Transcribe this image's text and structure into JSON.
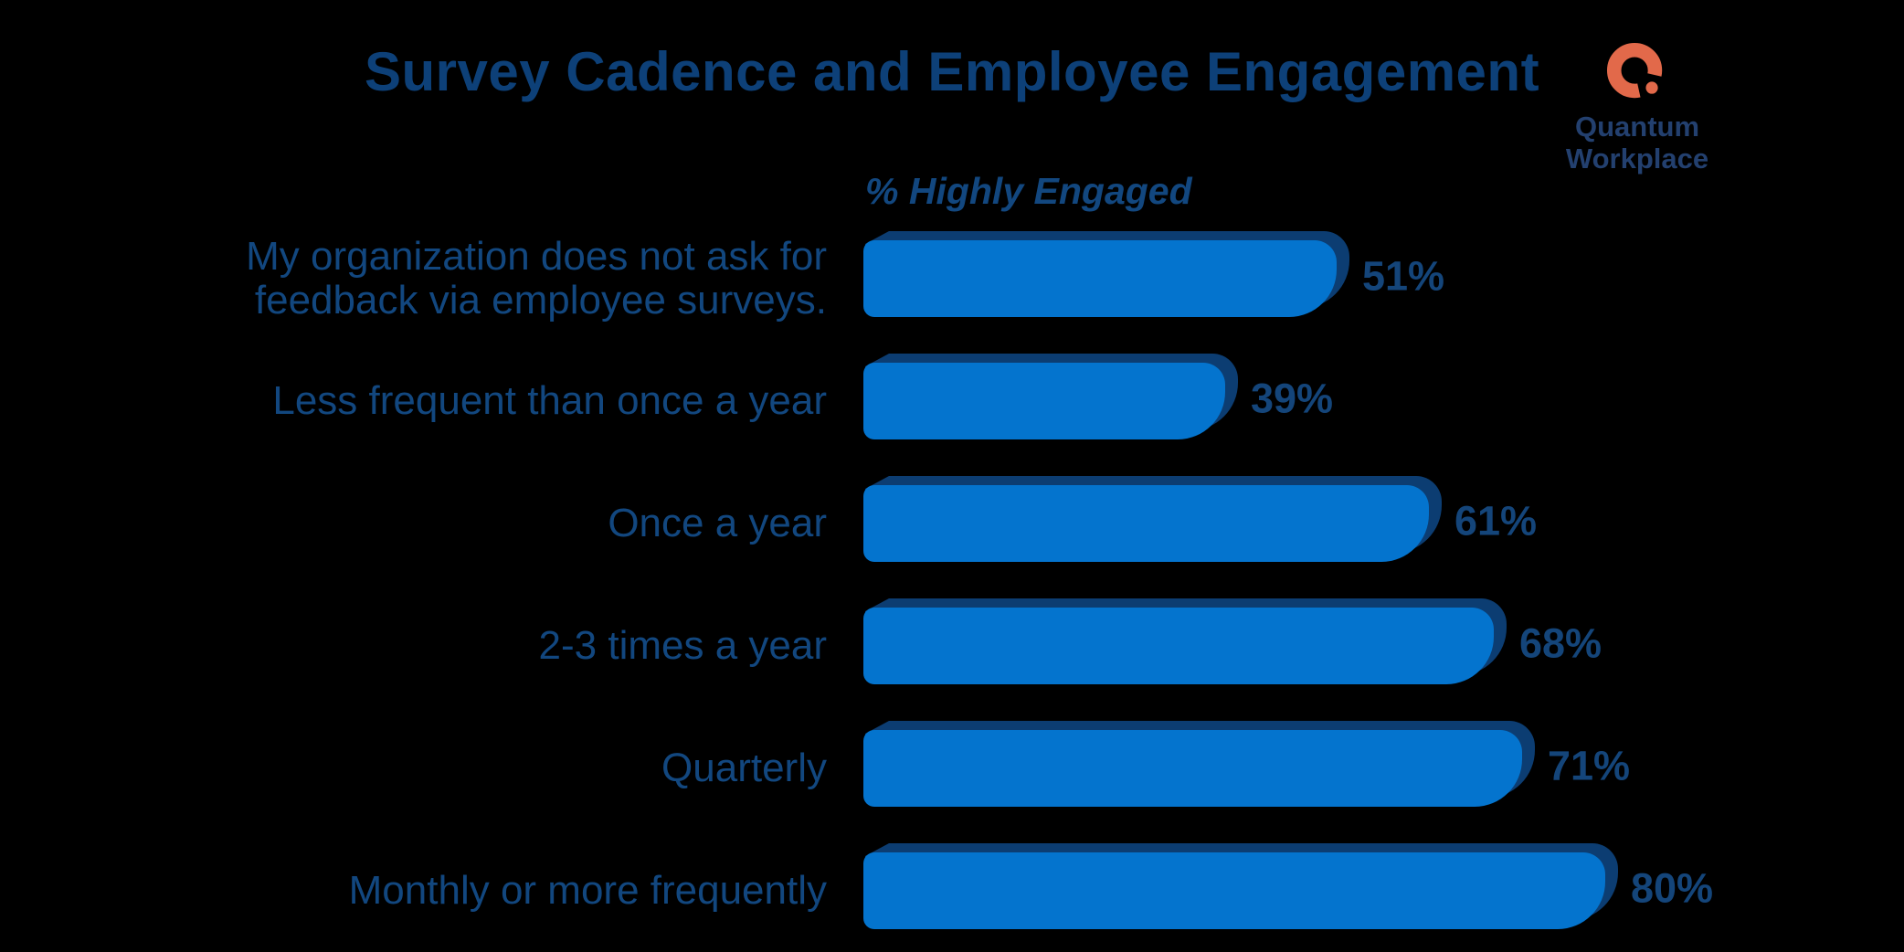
{
  "title": "Survey Cadence and Employee Engagement",
  "brand": {
    "name_line1": "Quantum",
    "name_line2": "Workplace",
    "logo_icon": "q-ring-with-dot-icon"
  },
  "colors": {
    "background": "#000000",
    "bar_fill": "#0474CE",
    "bar_shadow": "#0C3D72",
    "text_navy": "#12477F",
    "title_navy": "#0D4078",
    "value_navy": "#14457A",
    "logo_orange": "#E2694A",
    "logo_navy": "#23406F"
  },
  "chart_data": {
    "type": "bar",
    "orientation": "horizontal",
    "title": "Survey Cadence and Employee Engagement",
    "value_axis_label": "% Highly Engaged",
    "value_suffix": "%",
    "legend": "none",
    "grid": "off",
    "categories": [
      "My organization does not ask for feedback via employee surveys.",
      "Less frequent than once a year",
      "Once a year",
      "2-3 times a year",
      "Quarterly",
      "Monthly or more frequently"
    ],
    "values": [
      51,
      39,
      61,
      68,
      71,
      80
    ],
    "value_labels": [
      "51%",
      "39%",
      "61%",
      "68%",
      "71%",
      "80%"
    ]
  }
}
